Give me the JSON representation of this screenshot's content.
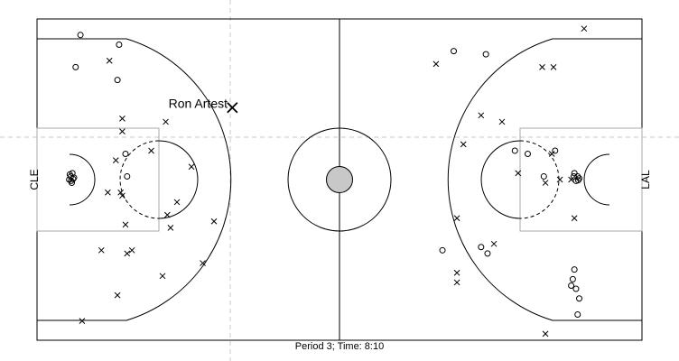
{
  "chart_data": {
    "type": "scatter",
    "title": "",
    "team_left": "CLE",
    "team_right": "LAL",
    "footer": "Period 3; Time: 8:10",
    "court": {
      "length_ft": 94,
      "width_ft": 50
    },
    "highlight": {
      "label": "Ron Artest",
      "marker": "x",
      "x": 60.7,
      "y": 36.2
    },
    "series": [
      {
        "marker": "o",
        "points": [
          [
            13.5,
            47.5
          ],
          [
            25.5,
            46.0
          ],
          [
            12.0,
            42.5
          ],
          [
            25.0,
            40.5
          ],
          [
            27.5,
            29.0
          ],
          [
            28.0,
            25.5
          ],
          [
            10.5,
            25.5
          ],
          [
            10.0,
            25.0
          ],
          [
            11.0,
            26.0
          ],
          [
            10.8,
            24.5
          ],
          [
            11.5,
            25.3
          ],
          [
            10.2,
            25.8
          ],
          [
            10.6,
            24.8
          ],
          [
            11.2,
            25.1
          ],
          [
            129.5,
            45.0
          ],
          [
            139.5,
            44.5
          ],
          [
            126.0,
            14.0
          ],
          [
            138.0,
            14.5
          ],
          [
            140.0,
            13.5
          ],
          [
            148.5,
            29.5
          ],
          [
            152.5,
            29.0
          ],
          [
            161.0,
            29.5
          ],
          [
            157.5,
            25.5
          ],
          [
            167.0,
            26.0
          ],
          [
            168.0,
            25.5
          ],
          [
            167.5,
            24.8
          ],
          [
            168.5,
            25.2
          ],
          [
            166.8,
            25.5
          ],
          [
            168.2,
            24.9
          ],
          [
            167.0,
            11.0
          ],
          [
            166.5,
            9.5
          ],
          [
            166.0,
            8.5
          ],
          [
            167.5,
            8.0
          ],
          [
            168.5,
            6.5
          ],
          [
            168.0,
            4.0
          ]
        ]
      },
      {
        "marker": "x",
        "points": [
          [
            22.5,
            43.5
          ],
          [
            26.5,
            34.5
          ],
          [
            26.5,
            32.5
          ],
          [
            40.0,
            34.0
          ],
          [
            35.5,
            29.5
          ],
          [
            24.5,
            28.0
          ],
          [
            48.0,
            27.0
          ],
          [
            22.0,
            23.0
          ],
          [
            26.0,
            23.0
          ],
          [
            26.5,
            22.5
          ],
          [
            43.5,
            21.5
          ],
          [
            40.5,
            19.5
          ],
          [
            27.5,
            18.0
          ],
          [
            55.0,
            18.5
          ],
          [
            41.5,
            17.5
          ],
          [
            20.0,
            14.0
          ],
          [
            28.0,
            13.5
          ],
          [
            29.5,
            14.0
          ],
          [
            51.5,
            12.0
          ],
          [
            39.0,
            10.0
          ],
          [
            25.0,
            7.0
          ],
          [
            14.0,
            3.0
          ],
          [
            124.0,
            43.0
          ],
          [
            157.0,
            42.5
          ],
          [
            160.5,
            42.5
          ],
          [
            138.0,
            35.0
          ],
          [
            144.5,
            34.0
          ],
          [
            132.5,
            30.5
          ],
          [
            160.0,
            29.0
          ],
          [
            149.5,
            26.0
          ],
          [
            158.0,
            24.5
          ],
          [
            162.5,
            25.0
          ],
          [
            166.0,
            25.0
          ],
          [
            130.5,
            19.0
          ],
          [
            167.0,
            19.0
          ],
          [
            142.0,
            15.0
          ],
          [
            130.5,
            10.5
          ],
          [
            130.5,
            9.0
          ],
          [
            158.0,
            1.0
          ],
          [
            170.0,
            48.5
          ]
        ]
      }
    ]
  }
}
